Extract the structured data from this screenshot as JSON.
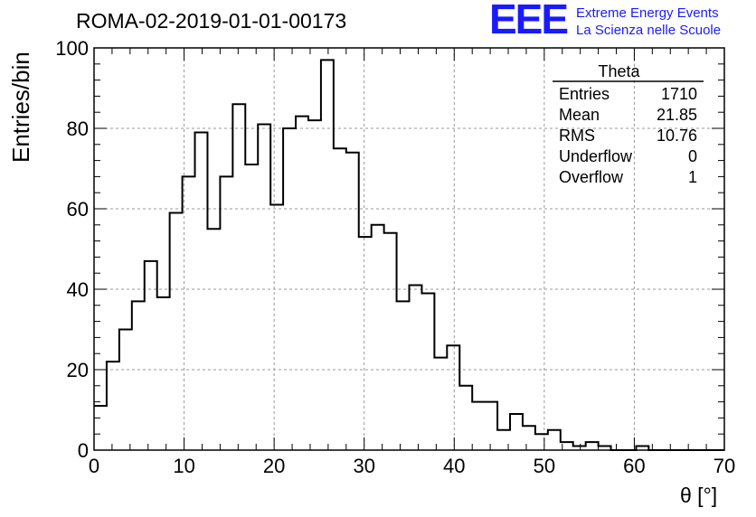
{
  "header": {
    "title": "ROMA-02-2019-01-01-00173",
    "logo_text": "EEE",
    "logo_line1": "Extreme Energy Events",
    "logo_line2": "La Scienza nelle Scuole"
  },
  "colors": {
    "logo": "#1a1aff",
    "histogram": "#000000",
    "grid": "#999999"
  },
  "stats_box": {
    "name": "Theta",
    "rows": [
      {
        "label": "Entries",
        "value": "1710"
      },
      {
        "label": "Mean",
        "value": "21.85"
      },
      {
        "label": "RMS",
        "value": "10.76"
      },
      {
        "label": "Underflow",
        "value": "0"
      },
      {
        "label": "Overflow",
        "value": "1"
      }
    ]
  },
  "chart_data": {
    "type": "histogram",
    "xlabel": "θ [°]",
    "ylabel": "Entries/bin",
    "xlim": [
      0,
      70
    ],
    "ylim": [
      0,
      100
    ],
    "grid": true,
    "bin_width": 1.4,
    "bin_edges_start": 0,
    "values": [
      11,
      22,
      30,
      37,
      47,
      38,
      59,
      68,
      79,
      55,
      68,
      86,
      71,
      81,
      61,
      80,
      83,
      82,
      97,
      75,
      74,
      53,
      56,
      54,
      37,
      41,
      39,
      23,
      26,
      16,
      12,
      12,
      5,
      9,
      6,
      4,
      5,
      2,
      1,
      2,
      1,
      0,
      0,
      1,
      0,
      0,
      0,
      0,
      0,
      0
    ],
    "xticks": [
      0,
      10,
      20,
      30,
      40,
      50,
      60,
      70
    ],
    "yticks": [
      0,
      20,
      40,
      60,
      80,
      100
    ]
  }
}
